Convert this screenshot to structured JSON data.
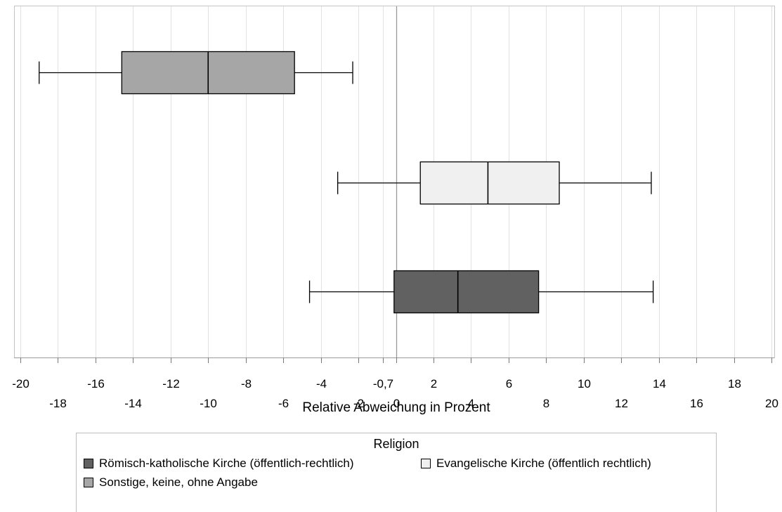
{
  "chart_data": {
    "type": "boxplot",
    "orientation": "horizontal",
    "xlabel": "Relative Abweichung in Prozent",
    "xlim": [
      -20,
      20
    ],
    "ticks_top_row": [
      "-20",
      "-16",
      "-12",
      "-8",
      "-4",
      "-0,7",
      "2",
      "6",
      "10",
      "14",
      "18"
    ],
    "ticks_top_row_values": [
      -20,
      -16,
      -12,
      -8,
      -4,
      -0.7,
      2,
      6,
      10,
      14,
      18
    ],
    "ticks_bottom_row": [
      "-18",
      "-14",
      "-10",
      "-6",
      "-2",
      "0",
      "4",
      "8",
      "12",
      "16",
      "20"
    ],
    "ticks_bottom_row_values": [
      -18,
      -14,
      -10,
      -6,
      -2,
      0,
      4,
      8,
      12,
      16,
      20
    ],
    "reference_line": 0,
    "grid": true,
    "legend_title": "Religion",
    "legend_position": "bottom",
    "series": [
      {
        "name": "Sonstige, keine, ohne Angabe",
        "color": "#a6a6a6",
        "whisker_low": -19.0,
        "q1": -14.6,
        "median": -10.0,
        "q3": -5.4,
        "whisker_high": -2.3
      },
      {
        "name": "Evangelische Kirche (öffentlich rechtlich)",
        "color": "#f0f0f0",
        "whisker_low": -3.1,
        "q1": 1.3,
        "median": 4.9,
        "q3": 8.7,
        "whisker_high": 13.6
      },
      {
        "name": "Römisch-katholische Kirche (öffentlich-rechtlich)",
        "color": "#616161",
        "whisker_low": -4.6,
        "q1": -0.1,
        "median": 3.3,
        "q3": 7.6,
        "whisker_high": 13.7
      }
    ],
    "legend_order": [
      "Römisch-katholische Kirche (öffentlich-rechtlich)",
      "Evangelische Kirche (öffentlich rechtlich)",
      "Sonstige, keine, ohne Angabe"
    ]
  }
}
